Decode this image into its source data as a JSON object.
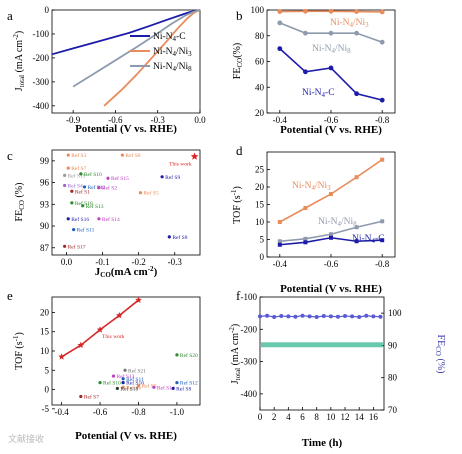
{
  "watermark": "文献接收",
  "chart_data": [
    {
      "panel": "a",
      "type": "line",
      "xlabel": "Potential (V vs. RHE)",
      "ylabel": "J_total (mA cm^-2)",
      "xlim": [
        -1.05,
        0.0
      ],
      "ylim": [
        -430,
        0
      ],
      "xticks": [
        "-0.9",
        "-0.6",
        "-0.3",
        "0.0"
      ],
      "yticks": [
        "0",
        "-100",
        "-200",
        "-300",
        "-400"
      ],
      "series": [
        {
          "name": "Ni-N4-C",
          "color": "#1c1ca8",
          "x": [
            -1.05,
            -0.9,
            -0.7,
            -0.5,
            -0.35,
            -0.25,
            -0.15,
            -0.08,
            -0.03,
            0.0
          ],
          "y": [
            -185,
            -160,
            -128,
            -95,
            -65,
            -44,
            -24,
            -10,
            -3,
            0
          ]
        },
        {
          "name": "Ni-N4/Ni3",
          "color": "#e88c5c",
          "x": [
            -0.68,
            -0.55,
            -0.45,
            -0.35,
            -0.25,
            -0.16,
            -0.09,
            -0.04,
            0.0
          ],
          "y": [
            -400,
            -330,
            -270,
            -205,
            -140,
            -78,
            -35,
            -10,
            0
          ]
        },
        {
          "name": "Ni-N4/Ni8",
          "color": "#8e9aae",
          "x": [
            -0.9,
            -0.75,
            -0.6,
            -0.45,
            -0.32,
            -0.2,
            -0.11,
            -0.05,
            0.0
          ],
          "y": [
            -320,
            -265,
            -210,
            -155,
            -105,
            -57,
            -25,
            -8,
            0
          ]
        }
      ]
    },
    {
      "panel": "b",
      "type": "line",
      "xlabel": "Potential (V vs. RHE)",
      "ylabel": "FE_CO (%)",
      "xlim": [
        -0.35,
        -0.85
      ],
      "ylim": [
        20,
        100
      ],
      "xticks": [
        "-0.4",
        "-0.6",
        "-0.8"
      ],
      "yticks": [
        "20",
        "40",
        "60",
        "80",
        "100"
      ],
      "x": [
        -0.4,
        -0.5,
        -0.6,
        -0.7,
        -0.8
      ],
      "series": [
        {
          "name": "Ni-N4/Ni3",
          "color": "#e88c5c",
          "values": [
            98.8,
            99.0,
            99.0,
            98.8,
            98.5
          ]
        },
        {
          "name": "Ni-N4/Ni8",
          "color": "#8e9aae",
          "values": [
            90,
            82,
            82,
            82,
            75
          ]
        },
        {
          "name": "Ni-N4-C",
          "color": "#1c1ca8",
          "values": [
            70,
            52,
            55,
            35,
            30
          ]
        }
      ]
    },
    {
      "panel": "c",
      "type": "scatter",
      "xlabel": "J_CO(mA cm^-2)",
      "ylabel": "FE_CO (%)",
      "xlim": [
        0.04,
        -0.37
      ],
      "ylim": [
        86,
        100.5
      ],
      "xticks": [
        "0.0",
        "-0.1",
        "-0.2",
        "-0.3"
      ],
      "yticks": [
        "87",
        "90",
        "93",
        "96",
        "99"
      ],
      "points": [
        {
          "label": "Ref S3",
          "x": -0.005,
          "y": 99.8,
          "color": "#e88c5c"
        },
        {
          "label": "Ref S6",
          "x": -0.155,
          "y": 99.8,
          "color": "#e88c5c"
        },
        {
          "label": "Ref S7",
          "x": -0.005,
          "y": 98.0,
          "color": "#e88c5c"
        },
        {
          "label": "Ref S19",
          "x": 0.005,
          "y": 97.0,
          "color": "#999999"
        },
        {
          "label": "Ref S10",
          "x": -0.04,
          "y": 97.2,
          "color": "#2e8b2e"
        },
        {
          "label": "Ref S15",
          "x": -0.115,
          "y": 96.6,
          "color": "#c040c0"
        },
        {
          "label": "Ref S9",
          "x": -0.265,
          "y": 96.8,
          "color": "#1c1ca8"
        },
        {
          "label": "Ref S4",
          "x": 0.005,
          "y": 95.6,
          "color": "#9966cc"
        },
        {
          "label": "Ref S12",
          "x": -0.05,
          "y": 95.4,
          "color": "#2060c0"
        },
        {
          "label": "Ref S2",
          "x": -0.09,
          "y": 95.3,
          "color": "#c040c0"
        },
        {
          "label": "Ref S1",
          "x": -0.015,
          "y": 94.8,
          "color": "#9e2b2b"
        },
        {
          "label": "Ref S5",
          "x": -0.205,
          "y": 94.6,
          "color": "#e88c5c"
        },
        {
          "label": "Ref S18",
          "x": -0.015,
          "y": 93.2,
          "color": "#2e8b2e"
        },
        {
          "label": "Ref S13",
          "x": -0.045,
          "y": 92.8,
          "color": "#2e8b2e"
        },
        {
          "label": "Ref S16",
          "x": -0.005,
          "y": 91.0,
          "color": "#1c1ca8"
        },
        {
          "label": "Ref S14",
          "x": -0.09,
          "y": 91.0,
          "color": "#c040c0"
        },
        {
          "label": "Ref S11",
          "x": -0.02,
          "y": 89.5,
          "color": "#2060c0"
        },
        {
          "label": "Ref S8",
          "x": -0.285,
          "y": 88.5,
          "color": "#1c1ca8"
        },
        {
          "label": "Ref S17",
          "x": 0.005,
          "y": 87.2,
          "color": "#9e2b2b"
        },
        {
          "label": "This work",
          "x": -0.355,
          "y": 99.6,
          "color": "#e02020",
          "star": true
        }
      ]
    },
    {
      "panel": "d",
      "type": "line",
      "xlabel": "Potential (V vs. RHE)",
      "ylabel": "TOF (s^-1)",
      "xlim": [
        -0.35,
        -0.85
      ],
      "ylim": [
        0,
        30
      ],
      "xticks": [
        "-0.4",
        "-0.6",
        "-0.8"
      ],
      "yticks": [
        "0",
        "5",
        "10",
        "15",
        "20",
        "25"
      ],
      "x": [
        -0.4,
        -0.5,
        -0.6,
        -0.7,
        -0.8
      ],
      "series": [
        {
          "name": "Ni-N4/Ni3",
          "color": "#e88c5c",
          "values": [
            10,
            14,
            18,
            22.8,
            27.8
          ]
        },
        {
          "name": "Ni-N4/Ni8",
          "color": "#8e9aae",
          "values": [
            4.5,
            5.2,
            6.5,
            8.5,
            10.2
          ]
        },
        {
          "name": "Ni-N4-C",
          "color": "#1c1ca8",
          "values": [
            3.5,
            4.2,
            5.5,
            4.5,
            4.8
          ]
        }
      ]
    },
    {
      "panel": "e",
      "type": "scatter",
      "xlabel": "Potential (V vs. RHE)",
      "ylabel": "TOF (s^-1)",
      "xlim": [
        -0.35,
        -1.12
      ],
      "ylim": [
        -4,
        24
      ],
      "xticks": [
        "-0.4",
        "-0.6",
        "-0.8",
        "-1.0"
      ],
      "yticks": [
        "-5",
        "0",
        "5",
        "10",
        "15",
        "20"
      ],
      "this_work": {
        "label": "This work",
        "color": "#d62828",
        "x": [
          -0.4,
          -0.5,
          -0.6,
          -0.7,
          -0.8
        ],
        "y": [
          8.5,
          11.5,
          15.5,
          19.2,
          23.2
        ]
      },
      "points": [
        {
          "label": "Ref S20",
          "x": -1.0,
          "y": 9.0,
          "color": "#2e8b2e"
        },
        {
          "label": "Ref S21",
          "x": -0.73,
          "y": 5.0,
          "color": "#777777"
        },
        {
          "label": "Ref S13",
          "x": -0.67,
          "y": 3.5,
          "color": "#c040c0"
        },
        {
          "label": "Ref S11",
          "x": -0.72,
          "y": 2.8,
          "color": "#2060c0"
        },
        {
          "label": "Ref S16",
          "x": -0.72,
          "y": 1.8,
          "color": "#1c1ca8"
        },
        {
          "label": "Ref S10",
          "x": -0.6,
          "y": 1.8,
          "color": "#2e8b2e"
        },
        {
          "label": "Ref S5",
          "x": -0.8,
          "y": 1.0,
          "color": "#e88c5c"
        },
        {
          "label": "Ref S14",
          "x": -0.88,
          "y": 0.6,
          "color": "#c040c0"
        },
        {
          "label": "Ref S12",
          "x": -1.0,
          "y": 1.8,
          "color": "#2060c0"
        },
        {
          "label": "Ref S8",
          "x": -0.98,
          "y": 0.3,
          "color": "#1c1ca8"
        },
        {
          "label": "Ref S6",
          "x": -0.72,
          "y": 0.6,
          "color": "#e88c5c"
        },
        {
          "label": "Ref S7",
          "x": -0.5,
          "y": -1.8,
          "color": "#9e2b2b"
        },
        {
          "label": "Ref S18",
          "x": -0.69,
          "y": 0.3,
          "color": "#333333"
        }
      ]
    },
    {
      "panel": "f",
      "type": "scatter",
      "xlabel": "Time (h)",
      "ylabel": "J_total (mA cm^-2)",
      "ylabel_right": "FE_CO (%)",
      "xlim": [
        0,
        17.5
      ],
      "ylim": [
        -450,
        -100
      ],
      "ylim_right": [
        70,
        105
      ],
      "xticks": [
        "0",
        "2",
        "4",
        "6",
        "8",
        "10",
        "12",
        "14",
        "16"
      ],
      "yticks": [
        "-400",
        "-300",
        "-200",
        "-100"
      ],
      "yticks_right": [
        "70",
        "80",
        "90",
        "100"
      ],
      "series": [
        {
          "name": "J_total",
          "color": "#4fc0a0",
          "axis": "left",
          "value": -248
        },
        {
          "name": "FE_CO",
          "color": "#5a5ad6",
          "axis": "right",
          "x": [
            0,
            1,
            2,
            3,
            4,
            5,
            6,
            7,
            8,
            9,
            10,
            11,
            12,
            13,
            14,
            15,
            16,
            17
          ],
          "values": [
            99,
            99.2,
            98.8,
            99.1,
            99,
            98.9,
            99.2,
            99,
            98.8,
            99.1,
            99,
            98.9,
            99.1,
            99,
            98.8,
            99.2,
            99,
            98.9
          ]
        }
      ]
    }
  ],
  "panels": {
    "a": {
      "letter": "a",
      "ylabel_main": "J",
      "ylabel_sub": "total",
      "ylabel_unit": " (mA cm",
      "ylabel_sup": "-2",
      "ylabel_end": ")",
      "xlabel": "Potential (V vs. RHE)",
      "leg": [
        "Ni-N",
        "Ni-N",
        "Ni-N"
      ],
      "leg_sub": [
        "4",
        "4",
        "4"
      ],
      "leg_tail": [
        "-C",
        "/Ni",
        "/Ni"
      ],
      "leg_sub2": [
        "",
        "3",
        "8"
      ]
    },
    "b": {
      "letter": "b",
      "ylabel_main": "FE",
      "ylabel_sub": "CO",
      "ylabel_unit": "(%)",
      "xlabel": "Potential (V vs. RHE)",
      "lab_ni3": "Ni-N",
      "lab_ni3_sub": "4",
      "lab_ni3_tail": "/Ni",
      "lab_ni3_sub2": "3",
      "lab_ni8": "Ni-N",
      "lab_ni8_sub": "4",
      "lab_ni8_tail": "/Ni",
      "lab_ni8_sub2": "8",
      "lab_c": "Ni-N",
      "lab_c_sub": "4",
      "lab_c_tail": "-C"
    },
    "c": {
      "letter": "c",
      "ylabel_main": "FE",
      "ylabel_sub": "CO",
      "ylabel_unit": " (%)",
      "xlabel_main": "J",
      "xlabel_sub": "CO",
      "xlabel_unit": "(mA cm",
      "xlabel_sup": "-2",
      "xlabel_end": ")"
    },
    "d": {
      "letter": "d",
      "ylabel_main": "TOF (s",
      "ylabel_sup": "-1",
      "ylabel_end": ")",
      "xlabel": "Potential (V vs. RHE)",
      "lab_ni3": "Ni-N",
      "lab_ni3_sub": "4",
      "lab_ni3_tail": "/Ni",
      "lab_ni3_sub2": "3",
      "lab_ni8": "Ni-N",
      "lab_ni8_sub": "4",
      "lab_ni8_tail": "/Ni",
      "lab_ni8_sub2": "8",
      "lab_c": "Ni-N",
      "lab_c_sub": "4",
      "lab_c_tail": "-C"
    },
    "e": {
      "letter": "e",
      "ylabel_main": "TOF (s",
      "ylabel_sup": "-1",
      "ylabel_end": ")",
      "xlabel": "Potential (V vs. RHE)"
    },
    "f": {
      "letter": "f",
      "ylabel_main": "J",
      "ylabel_sub": "total",
      "ylabel_unit": " (mA cm",
      "ylabel_sup": "-2",
      "ylabel_end": ")",
      "yrlabel_main": "FE",
      "yrlabel_sub": "CO",
      "yrlabel_unit": " (%)",
      "xlabel": "Time (h)"
    }
  },
  "colors": {
    "blue": "#1c1ca8",
    "orange": "#e88c5c",
    "gray": "#8e9aae",
    "red": "#d62828",
    "green": "#4fc0a0",
    "purple": "#5a5ad6"
  }
}
